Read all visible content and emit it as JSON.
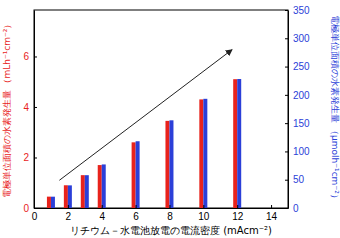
{
  "chart_data": {
    "type": "bar",
    "x_label": "リチウム－水電池放電の電流密度 (mAcm⁻²)",
    "y_label": "電極単位面積の水素発生量 （mLh⁻¹cm⁻²）",
    "y2_label": "電極単位面積の水素発生量 （μmolh⁻¹cm⁻²）",
    "x": [
      1,
      2,
      3,
      4,
      6,
      8,
      10,
      12
    ],
    "xlim": [
      0,
      15
    ],
    "xticks": [
      0,
      2,
      4,
      6,
      8,
      10,
      12,
      14
    ],
    "ylim": [
      0,
      7.84
    ],
    "yticks": [
      0,
      2,
      4,
      6
    ],
    "y2lim": [
      0,
      350
    ],
    "y2ticks": [
      0,
      50,
      100,
      150,
      200,
      250,
      300,
      350
    ],
    "series": [
      {
        "color": "#e8231c",
        "values": [
          0.45,
          0.9,
          1.3,
          1.7,
          2.6,
          3.45,
          4.3,
          5.1
        ]
      },
      {
        "color": "#2b3fd8",
        "axis": "y2",
        "values": [
          20,
          40,
          58,
          77,
          118,
          155,
          193,
          228
        ]
      }
    ]
  }
}
